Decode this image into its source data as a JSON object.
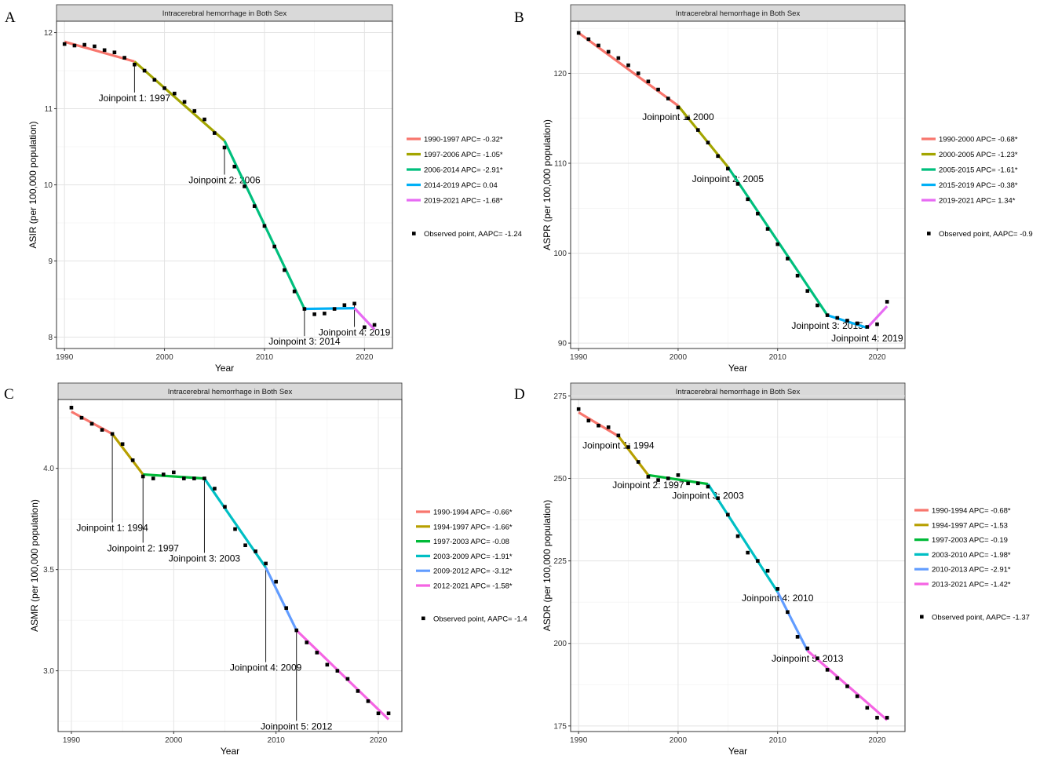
{
  "chart_data": [
    {
      "type": "line",
      "panel_letter": "A",
      "title": "Intracerebral hemorrhage in Both Sex",
      "xlabel": "Year",
      "ylabel": "ASIR (per 100,000 population)",
      "xlim": [
        1989.2,
        2022.8
      ],
      "ylim": [
        7.85,
        12.15
      ],
      "xticks": [
        1990,
        2000,
        2010,
        2020
      ],
      "yticks": [
        8,
        9,
        10,
        11,
        12
      ],
      "x": [
        1990,
        1991,
        1992,
        1993,
        1994,
        1995,
        1996,
        1997,
        1998,
        1999,
        2000,
        2001,
        2002,
        2003,
        2004,
        2005,
        2006,
        2007,
        2008,
        2009,
        2010,
        2011,
        2012,
        2013,
        2014,
        2015,
        2016,
        2017,
        2018,
        2019,
        2020,
        2021
      ],
      "observed": [
        11.85,
        11.83,
        11.84,
        11.82,
        11.77,
        11.74,
        11.67,
        11.58,
        11.5,
        11.38,
        11.27,
        11.2,
        11.09,
        10.97,
        10.86,
        10.68,
        10.49,
        10.24,
        9.98,
        9.72,
        9.46,
        9.19,
        8.88,
        8.6,
        8.37,
        8.3,
        8.31,
        8.37,
        8.42,
        8.44,
        8.13,
        8.16
      ],
      "segments": [
        {
          "label": "1990-1997 APC= -0.32*",
          "color": "#F8766D",
          "x": [
            1990,
            1997
          ],
          "y": [
            11.88,
            11.62
          ]
        },
        {
          "label": "1997-2006 APC= -1.05*",
          "color": "#A3A500",
          "x": [
            1997,
            2006
          ],
          "y": [
            11.62,
            10.58
          ]
        },
        {
          "label": "2006-2014 APC= -2.91*",
          "color": "#00BF7D",
          "x": [
            2006,
            2014
          ],
          "y": [
            10.58,
            8.37
          ]
        },
        {
          "label": "2014-2019 APC= 0.04",
          "color": "#00B0F6",
          "x": [
            2014,
            2019
          ],
          "y": [
            8.37,
            8.38
          ]
        },
        {
          "label": "2019-2021 APC= -1.68*",
          "color": "#E76BF3",
          "x": [
            2019,
            2021
          ],
          "y": [
            8.38,
            8.1
          ]
        }
      ],
      "observed_legend": "Observed point, AAPC= -1.24",
      "joinpoints": [
        {
          "label": "Joinpoint 1: 1997",
          "year": 1997,
          "value": 11.58,
          "text_year": 1997,
          "text_value": 11.1
        },
        {
          "label": "Joinpoint 2: 2006",
          "year": 2006,
          "value": 10.49,
          "text_year": 2006,
          "text_value": 10.02
        },
        {
          "label": "Joinpoint 3: 2014",
          "year": 2014,
          "value": 8.37,
          "text_year": 2014,
          "text_value": 7.9
        },
        {
          "label": "Joinpoint 4: 2019",
          "year": 2019,
          "value": 8.44,
          "text_year": 2019,
          "text_value": 8.02
        }
      ]
    },
    {
      "type": "line",
      "panel_letter": "B",
      "title": "Intracerebral hemorrhage in Both Sex",
      "xlabel": "Year",
      "ylabel": "ASPR (per 100,000 population)",
      "xlim": [
        1989.2,
        2022.8
      ],
      "ylim": [
        89.4,
        125.8
      ],
      "xticks": [
        1990,
        2000,
        2010,
        2020
      ],
      "yticks": [
        90,
        100,
        110,
        120
      ],
      "x": [
        1990,
        1991,
        1992,
        1993,
        1994,
        1995,
        1996,
        1997,
        1998,
        1999,
        2000,
        2001,
        2002,
        2003,
        2004,
        2005,
        2006,
        2007,
        2008,
        2009,
        2010,
        2011,
        2012,
        2013,
        2014,
        2015,
        2016,
        2017,
        2018,
        2019,
        2020,
        2021
      ],
      "observed": [
        124.5,
        123.8,
        123.1,
        122.4,
        121.7,
        120.9,
        120.0,
        119.1,
        118.2,
        117.2,
        116.2,
        115.0,
        113.7,
        112.3,
        110.8,
        109.4,
        107.7,
        106.0,
        104.4,
        102.7,
        101.0,
        99.4,
        97.5,
        95.8,
        94.2,
        93.1,
        92.8,
        92.5,
        92.2,
        91.8,
        92.1,
        94.6
      ],
      "segments": [
        {
          "label": "1990-2000 APC= -0.68*",
          "color": "#F8766D",
          "x": [
            1990,
            2000
          ],
          "y": [
            124.5,
            116.4
          ]
        },
        {
          "label": "2000-2005 APC= -1.23*",
          "color": "#A3A500",
          "x": [
            2000,
            2005
          ],
          "y": [
            116.4,
            109.6
          ]
        },
        {
          "label": "2005-2015 APC= -1.61*",
          "color": "#00BF7D",
          "x": [
            2005,
            2015
          ],
          "y": [
            109.6,
            93.1
          ]
        },
        {
          "label": "2015-2019 APC= -0.38*",
          "color": "#00B0F6",
          "x": [
            2015,
            2019
          ],
          "y": [
            93.1,
            91.7
          ]
        },
        {
          "label": "2019-2021 APC= 1.34*",
          "color": "#E76BF3",
          "x": [
            2019,
            2021
          ],
          "y": [
            91.7,
            94.1
          ]
        }
      ],
      "observed_legend": "Observed point, AAPC= -0.9",
      "joinpoints": [
        {
          "label": "Joinpoint 1: 2000",
          "year": 2000,
          "value": 116.4,
          "text_year": 2000,
          "text_value": 114.8,
          "line": false
        },
        {
          "label": "Joinpoint 2: 2005",
          "year": 2005,
          "value": 109.6,
          "text_year": 2005,
          "text_value": 107.9,
          "line": false
        },
        {
          "label": "Joinpoint 3: 2015",
          "year": 2015,
          "value": 93.1,
          "text_year": 2015,
          "text_value": 91.6,
          "line": false
        },
        {
          "label": "Joinpoint 4: 2019",
          "year": 2019,
          "value": 91.8,
          "text_year": 2019,
          "text_value": 90.2,
          "line": false
        }
      ]
    },
    {
      "type": "line",
      "panel_letter": "C",
      "title": "Intracerebral hemorrhage in Both Sex",
      "xlabel": "Year",
      "ylabel": "ASMR (per 100,000 population)",
      "xlim": [
        1988.7,
        2022.3
      ],
      "ylim": [
        2.7,
        4.34
      ],
      "xticks": [
        1990,
        2000,
        2010,
        2020
      ],
      "yticks": [
        3.0,
        3.5,
        4.0
      ],
      "yformat": 1,
      "x": [
        1990,
        1991,
        1992,
        1993,
        1994,
        1995,
        1996,
        1997,
        1998,
        1999,
        2000,
        2001,
        2002,
        2003,
        2004,
        2005,
        2006,
        2007,
        2008,
        2009,
        2010,
        2011,
        2012,
        2013,
        2014,
        2015,
        2016,
        2017,
        2018,
        2019,
        2020,
        2021
      ],
      "observed": [
        4.3,
        4.25,
        4.22,
        4.19,
        4.17,
        4.12,
        4.04,
        3.96,
        3.95,
        3.97,
        3.98,
        3.95,
        3.95,
        3.95,
        3.9,
        3.81,
        3.7,
        3.62,
        3.59,
        3.53,
        3.44,
        3.31,
        3.2,
        3.14,
        3.09,
        3.03,
        3.0,
        2.96,
        2.9,
        2.85,
        2.79,
        2.79
      ],
      "segments": [
        {
          "label": "1990-1994 APC= -0.66*",
          "color": "#F8766D",
          "x": [
            1990,
            1994
          ],
          "y": [
            4.28,
            4.17
          ]
        },
        {
          "label": "1994-1997 APC= -1.66*",
          "color": "#B79F00",
          "x": [
            1994,
            1997
          ],
          "y": [
            4.17,
            3.97
          ]
        },
        {
          "label": "1997-2003 APC= -0.08",
          "color": "#00BA38",
          "x": [
            1997,
            2003
          ],
          "y": [
            3.97,
            3.95
          ]
        },
        {
          "label": "2003-2009 APC= -1.91*",
          "color": "#00BFC4",
          "x": [
            2003,
            2009
          ],
          "y": [
            3.95,
            3.51
          ]
        },
        {
          "label": "2009-2012 APC= -3.12*",
          "color": "#619CFF",
          "x": [
            2009,
            2012
          ],
          "y": [
            3.51,
            3.2
          ]
        },
        {
          "label": "2012-2021 APC= -1.58*",
          "color": "#F564E3",
          "x": [
            2012,
            2021
          ],
          "y": [
            3.2,
            2.76
          ]
        }
      ],
      "observed_legend": "Observed point, AAPC= -1.4",
      "joinpoints": [
        {
          "label": "Joinpoint 1: 1994",
          "year": 1994,
          "value": 4.17,
          "text_year": 1994,
          "text_value": 3.69
        },
        {
          "label": "Joinpoint 2: 1997",
          "year": 1997,
          "value": 3.97,
          "text_year": 1997,
          "text_value": 3.59
        },
        {
          "label": "Joinpoint 3: 2003",
          "year": 2003,
          "value": 3.95,
          "text_year": 2003,
          "text_value": 3.54
        },
        {
          "label": "Joinpoint 4: 2009",
          "year": 2009,
          "value": 3.51,
          "text_year": 2009,
          "text_value": 3.0
        },
        {
          "label": "Joinpoint 5: 2012",
          "year": 2012,
          "value": 3.2,
          "text_year": 2012,
          "text_value": 2.71
        }
      ]
    },
    {
      "type": "line",
      "panel_letter": "D",
      "title": "Intracerebral hemorrhage in Both Sex",
      "xlabel": "Year",
      "ylabel": "ASDR (per 100,000 population)",
      "xlim": [
        1989.2,
        2022.8
      ],
      "ylim": [
        173.3,
        273.9
      ],
      "xticks": [
        1990,
        2000,
        2010,
        2020
      ],
      "yticks": [
        175,
        200,
        225,
        250,
        275
      ],
      "x": [
        1990,
        1991,
        1992,
        1993,
        1994,
        1995,
        1996,
        1997,
        1998,
        1999,
        2000,
        2001,
        2002,
        2003,
        2004,
        2005,
        2006,
        2007,
        2008,
        2009,
        2010,
        2011,
        2012,
        2013,
        2014,
        2015,
        2016,
        2017,
        2018,
        2019,
        2020,
        2021
      ],
      "observed": [
        271.0,
        267.5,
        266.0,
        265.5,
        263.0,
        259.5,
        255.0,
        250.5,
        249.5,
        250.0,
        251.0,
        248.5,
        248.5,
        247.5,
        244.0,
        239.0,
        232.5,
        227.5,
        225.0,
        222.0,
        216.5,
        209.5,
        202.0,
        198.5,
        195.5,
        192.0,
        189.5,
        187.0,
        184.0,
        180.5,
        177.5,
        177.5
      ],
      "segments": [
        {
          "label": "1990-1994 APC= -0.68*",
          "color": "#F8766D",
          "x": [
            1990,
            1994
          ],
          "y": [
            270.0,
            262.8
          ]
        },
        {
          "label": "1994-1997 APC= -1.53",
          "color": "#B79F00",
          "x": [
            1994,
            1997
          ],
          "y": [
            262.8,
            251.0
          ]
        },
        {
          "label": "1997-2003 APC= -0.19",
          "color": "#00BA38",
          "x": [
            1997,
            2003
          ],
          "y": [
            251.0,
            248.3
          ]
        },
        {
          "label": "2003-2010 APC= -1.98*",
          "color": "#00BFC4",
          "x": [
            2003,
            2010
          ],
          "y": [
            248.3,
            215.6
          ]
        },
        {
          "label": "2010-2013 APC= -2.91*",
          "color": "#619CFF",
          "x": [
            2010,
            2013
          ],
          "y": [
            215.6,
            197.8
          ]
        },
        {
          "label": "2013-2021 APC= -1.42*",
          "color": "#F564E3",
          "x": [
            2013,
            2021
          ],
          "y": [
            197.8,
            176.8
          ]
        }
      ],
      "observed_legend": "Observed point, AAPC= -1.37",
      "joinpoints": [
        {
          "label": "Joinpoint 1: 1994",
          "year": 1994,
          "value": 262.8,
          "text_year": 1994,
          "text_value": 259.0,
          "line": false
        },
        {
          "label": "Joinpoint 2: 1997",
          "year": 1997,
          "value": 251.0,
          "text_year": 1997,
          "text_value": 247.0,
          "line": false
        },
        {
          "label": "Joinpoint 3: 2003",
          "year": 2003,
          "value": 248.3,
          "text_year": 2003,
          "text_value": 243.8,
          "line": false
        },
        {
          "label": "Joinpoint 4: 2010",
          "year": 2010,
          "value": 215.6,
          "text_year": 2010,
          "text_value": 212.8,
          "line": false
        },
        {
          "label": "Joinpoint 5: 2013",
          "year": 2013,
          "value": 197.8,
          "text_year": 2013,
          "text_value": 194.5,
          "line": false
        }
      ]
    }
  ]
}
